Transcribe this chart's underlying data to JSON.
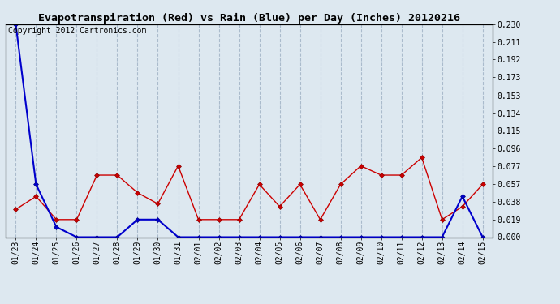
{
  "title": "Evapotranspiration (Red) vs Rain (Blue) per Day (Inches) 20120216",
  "copyright": "Copyright 2012 Cartronics.com",
  "x_labels": [
    "01/23",
    "01/24",
    "01/25",
    "01/26",
    "01/27",
    "01/28",
    "01/29",
    "01/30",
    "01/31",
    "02/01",
    "02/02",
    "02/03",
    "02/04",
    "02/05",
    "02/06",
    "02/07",
    "02/08",
    "02/09",
    "02/10",
    "02/11",
    "02/12",
    "02/13",
    "02/14",
    "02/15"
  ],
  "red_values": [
    0.03,
    0.044,
    0.019,
    0.019,
    0.067,
    0.067,
    0.048,
    0.036,
    0.077,
    0.019,
    0.019,
    0.019,
    0.057,
    0.033,
    0.057,
    0.019,
    0.057,
    0.077,
    0.067,
    0.067,
    0.086,
    0.019,
    0.033,
    0.057
  ],
  "blue_values": [
    0.23,
    0.057,
    0.011,
    0.0,
    0.0,
    0.0,
    0.019,
    0.019,
    0.0,
    0.0,
    0.0,
    0.0,
    0.0,
    0.0,
    0.0,
    0.0,
    0.0,
    0.0,
    0.0,
    0.0,
    0.0,
    0.0,
    0.044,
    0.0
  ],
  "ylim": [
    0.0,
    0.23
  ],
  "yticks": [
    0.0,
    0.019,
    0.038,
    0.057,
    0.077,
    0.096,
    0.115,
    0.134,
    0.153,
    0.173,
    0.192,
    0.211,
    0.23
  ],
  "red_color": "#cc0000",
  "blue_color": "#0000cc",
  "bg_color": "#dde8f0",
  "plot_bg_color": "#dde8f0",
  "grid_color": "#aabbcc",
  "title_fontsize": 9.5,
  "copyright_fontsize": 7,
  "tick_fontsize": 7
}
